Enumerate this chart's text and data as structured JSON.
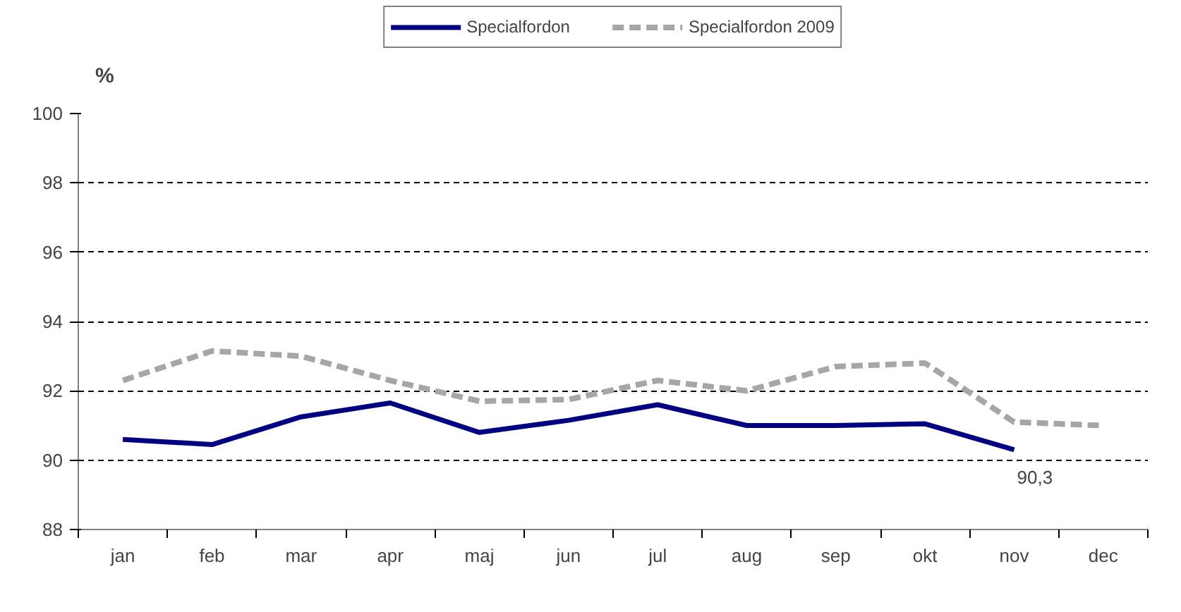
{
  "chart_data": {
    "type": "line",
    "ylabel": "%",
    "categories": [
      "jan",
      "feb",
      "mar",
      "apr",
      "maj",
      "jun",
      "jul",
      "aug",
      "sep",
      "okt",
      "nov",
      "dec"
    ],
    "series": [
      {
        "name": "Specialfordon",
        "color": "#000080",
        "line_style": "solid",
        "values": [
          90.6,
          90.45,
          91.25,
          91.65,
          90.8,
          91.15,
          91.6,
          91.0,
          91.0,
          91.05,
          90.3,
          null
        ],
        "value_labels": [
          null,
          null,
          null,
          null,
          null,
          null,
          null,
          null,
          null,
          null,
          "90,3",
          null
        ]
      },
      {
        "name": "Specialfordon 2009",
        "color": "#a6a6a6",
        "line_style": "dashed",
        "values": [
          92.3,
          93.15,
          93.0,
          92.3,
          91.7,
          91.75,
          92.3,
          92.0,
          92.7,
          92.8,
          91.1,
          91.0
        ]
      }
    ],
    "ylim": [
      88,
      100
    ],
    "yticks": [
      88,
      90,
      92,
      94,
      96,
      98,
      100
    ],
    "grid": "y",
    "legend": "top",
    "marker": "none"
  }
}
